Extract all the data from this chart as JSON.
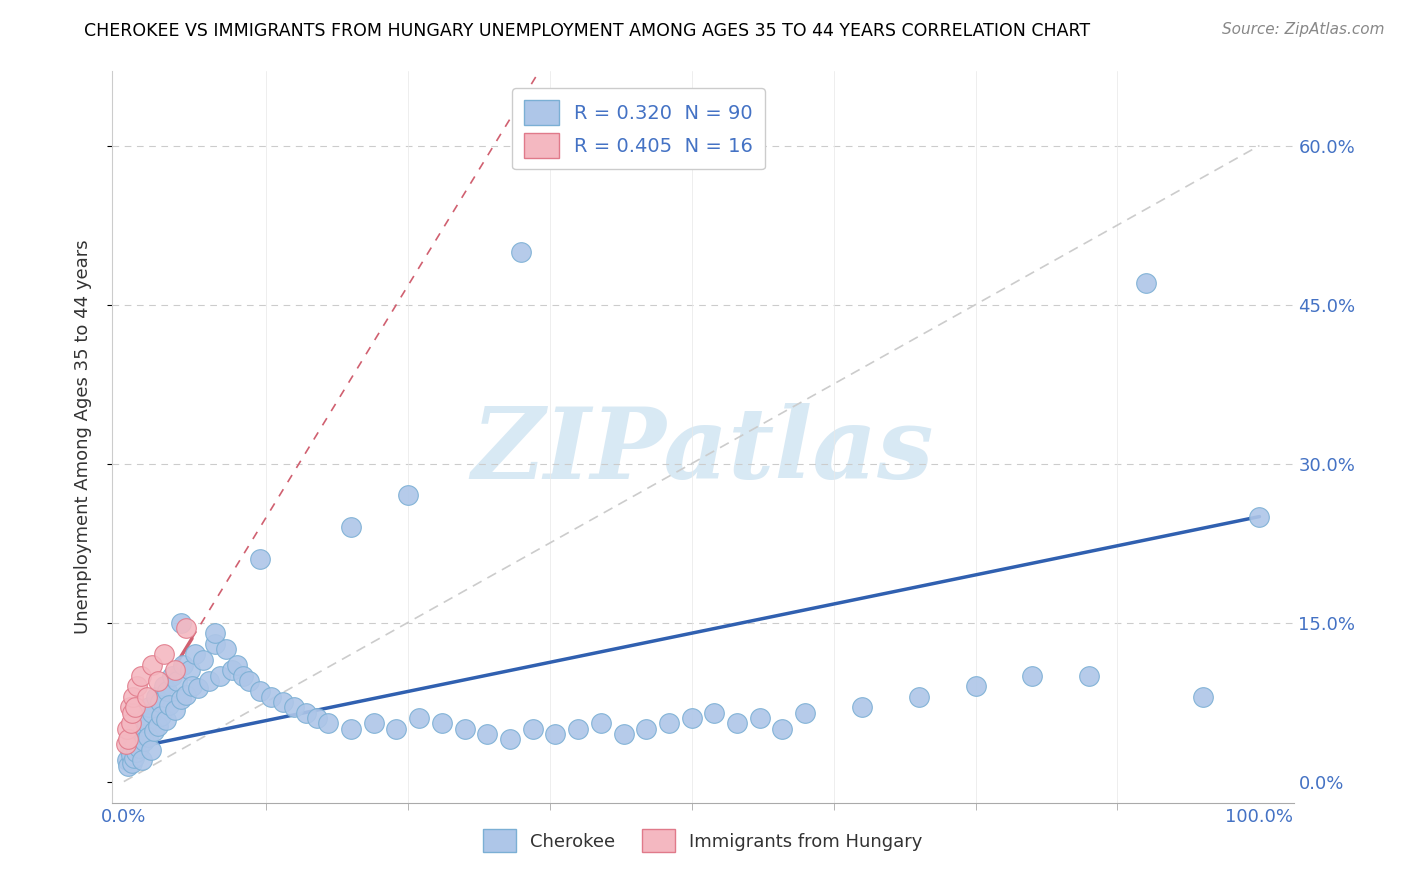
{
  "title": "CHEROKEE VS IMMIGRANTS FROM HUNGARY UNEMPLOYMENT AMONG AGES 35 TO 44 YEARS CORRELATION CHART",
  "source": "Source: ZipAtlas.com",
  "ylabel": "Unemployment Among Ages 35 to 44 years",
  "ytick_vals": [
    0.0,
    15.0,
    30.0,
    45.0,
    60.0
  ],
  "ytick_labels": [
    "0.0%",
    "15.0%",
    "30.0%",
    "45.0%",
    "60.0%"
  ],
  "xlim": [
    -1,
    103
  ],
  "ylim": [
    -2,
    67
  ],
  "watermark_text": "ZIPatlas",
  "watermark_color": "#c8e0f0",
  "cherokee_color": "#aec6e8",
  "cherokee_edge": "#7bafd4",
  "hungary_color": "#f4b8c1",
  "hungary_edge": "#e07a8a",
  "trendline_cherokee_color": "#3060b0",
  "trendline_hungary_color": "#d06070",
  "diag_color": "#cccccc",
  "legend1_label": "R = 0.320  N = 90",
  "legend2_label": "R = 0.405  N = 16",
  "bottom_legend1": "Cherokee",
  "bottom_legend2": "Immigrants from Hungary",
  "cherokee_x": [
    0.3,
    0.4,
    0.5,
    0.6,
    0.7,
    0.8,
    0.9,
    1.0,
    1.1,
    1.2,
    1.3,
    1.5,
    1.6,
    1.7,
    1.8,
    2.0,
    2.1,
    2.2,
    2.4,
    2.5,
    2.7,
    2.8,
    3.0,
    3.2,
    3.3,
    3.5,
    3.7,
    3.8,
    4.0,
    4.2,
    4.5,
    4.7,
    5.0,
    5.2,
    5.5,
    5.8,
    6.0,
    6.3,
    6.5,
    7.0,
    7.5,
    8.0,
    8.5,
    9.0,
    9.5,
    10.0,
    10.5,
    11.0,
    12.0,
    13.0,
    14.0,
    15.0,
    16.0,
    17.0,
    18.0,
    20.0,
    22.0,
    24.0,
    26.0,
    28.0,
    30.0,
    32.0,
    34.0,
    36.0,
    38.0,
    40.0,
    42.0,
    44.0,
    46.0,
    48.0,
    50.0,
    52.0,
    54.0,
    56.0,
    58.0,
    60.0,
    65.0,
    70.0,
    75.0,
    80.0,
    85.0,
    90.0,
    95.0,
    100.0,
    35.0,
    25.0,
    20.0,
    12.0,
    8.0,
    5.0
  ],
  "cherokee_y": [
    2.0,
    1.5,
    3.0,
    2.5,
    1.8,
    4.0,
    2.2,
    3.5,
    2.8,
    5.0,
    3.2,
    4.5,
    2.0,
    6.0,
    3.8,
    5.5,
    4.2,
    7.0,
    3.0,
    6.5,
    4.8,
    8.0,
    5.2,
    7.5,
    6.2,
    9.0,
    5.8,
    8.5,
    7.2,
    10.0,
    6.8,
    9.5,
    7.8,
    11.0,
    8.2,
    10.5,
    9.0,
    12.0,
    8.8,
    11.5,
    9.5,
    13.0,
    10.0,
    12.5,
    10.5,
    11.0,
    10.0,
    9.5,
    8.5,
    8.0,
    7.5,
    7.0,
    6.5,
    6.0,
    5.5,
    5.0,
    5.5,
    5.0,
    6.0,
    5.5,
    5.0,
    4.5,
    4.0,
    5.0,
    4.5,
    5.0,
    5.5,
    4.5,
    5.0,
    5.5,
    6.0,
    6.5,
    5.5,
    6.0,
    5.0,
    6.5,
    7.0,
    8.0,
    9.0,
    10.0,
    10.0,
    47.0,
    8.0,
    25.0,
    50.0,
    27.0,
    24.0,
    21.0,
    14.0,
    15.0
  ],
  "hungary_x": [
    0.2,
    0.3,
    0.4,
    0.5,
    0.6,
    0.7,
    0.8,
    1.0,
    1.2,
    1.5,
    2.0,
    2.5,
    3.0,
    3.5,
    4.5,
    5.5
  ],
  "hungary_y": [
    3.5,
    5.0,
    4.0,
    7.0,
    5.5,
    6.5,
    8.0,
    7.0,
    9.0,
    10.0,
    8.0,
    11.0,
    9.5,
    12.0,
    10.5,
    14.5
  ],
  "hungary_outlier_x": 0.5,
  "hungary_outlier_y": 14.5,
  "cherokee_trend_x0": 0,
  "cherokee_trend_y0": 3.0,
  "cherokee_trend_x1": 100,
  "cherokee_trend_y1": 25.0,
  "hungary_trend_x0": 0,
  "hungary_trend_y0": 3.0,
  "hungary_trend_x1": 6,
  "hungary_trend_y1": 13.5
}
